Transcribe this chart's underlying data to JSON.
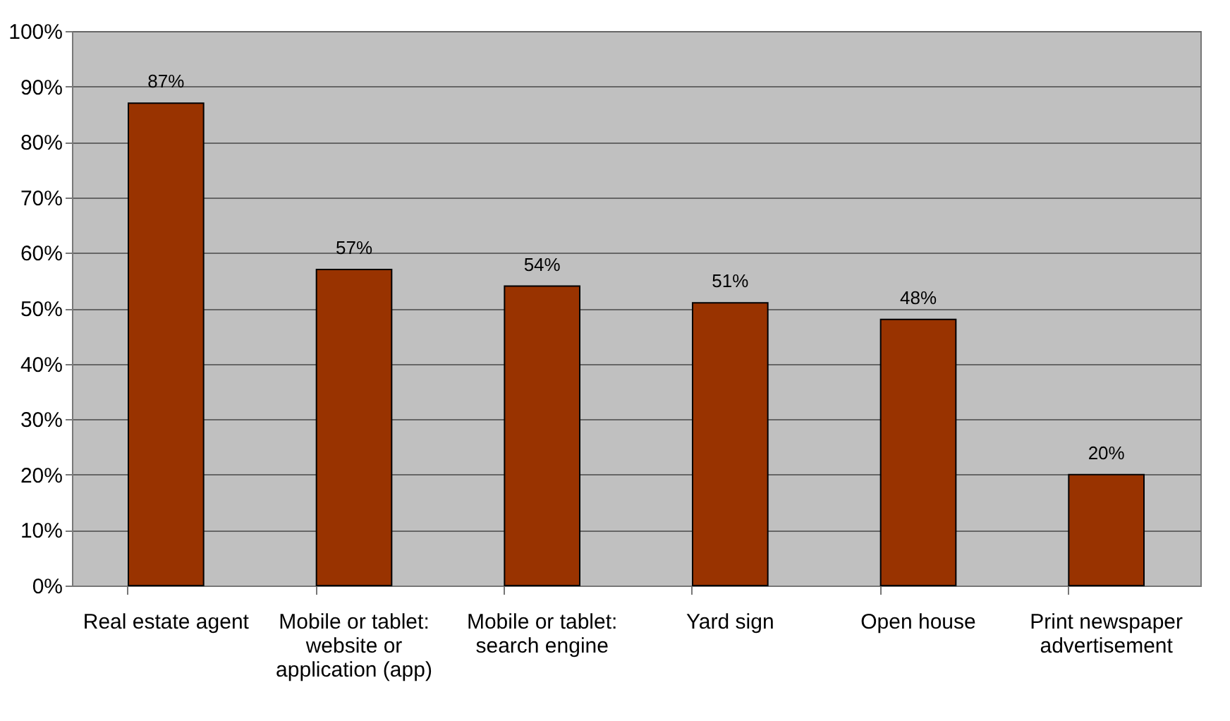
{
  "chart_data": {
    "type": "bar",
    "categories": [
      "Real estate agent",
      "Mobile or tablet: website or application (app)",
      "Mobile or tablet: search engine",
      "Yard sign",
      "Open house",
      "Print newspaper advertisement"
    ],
    "values": [
      87,
      57,
      54,
      51,
      48,
      20
    ],
    "value_labels": [
      "87%",
      "57%",
      "54%",
      "51%",
      "48%",
      "20%"
    ],
    "color": "#993300",
    "ylim": [
      0,
      100
    ],
    "yticks": [
      {
        "value": 0,
        "label": "0%"
      },
      {
        "value": 10,
        "label": "10%"
      },
      {
        "value": 20,
        "label": "20%"
      },
      {
        "value": 30,
        "label": "30%"
      },
      {
        "value": 40,
        "label": "40%"
      },
      {
        "value": 50,
        "label": "50%"
      },
      {
        "value": 60,
        "label": "60%"
      },
      {
        "value": 70,
        "label": "70%"
      },
      {
        "value": 80,
        "label": "80%"
      },
      {
        "value": 90,
        "label": "90%"
      },
      {
        "value": 100,
        "label": "100%"
      }
    ],
    "grid": "y"
  }
}
